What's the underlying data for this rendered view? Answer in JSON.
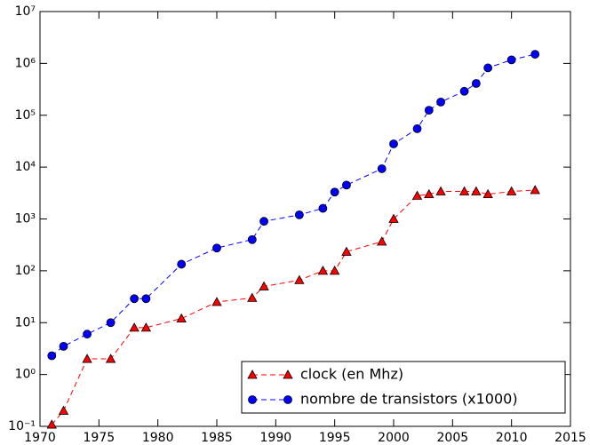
{
  "chart_data": {
    "type": "line",
    "log_y": true,
    "legend": "lower right",
    "xlim": [
      1970,
      2015
    ],
    "xticks": [
      1970,
      1975,
      1980,
      1985,
      1990,
      1995,
      2000,
      2005,
      2010,
      2015
    ],
    "ylim": [
      0.1,
      10000000
    ],
    "yticks": [
      {
        "value": 0.1,
        "label": "10⁻¹"
      },
      {
        "value": 1,
        "label": "10⁰"
      },
      {
        "value": 10,
        "label": "10¹"
      },
      {
        "value": 100,
        "label": "10²"
      },
      {
        "value": 1000,
        "label": "10³"
      },
      {
        "value": 10000,
        "label": "10⁴"
      },
      {
        "value": 100000,
        "label": "10⁵"
      },
      {
        "value": 1000000,
        "label": "10⁶"
      },
      {
        "value": 10000000,
        "label": "10⁷"
      }
    ],
    "series": [
      {
        "name": "clock (en Mhz)",
        "color": "#ff0000",
        "marker": "triangle",
        "x": [
          1971,
          1972,
          1974,
          1976,
          1978,
          1979,
          1982,
          1985,
          1988,
          1989,
          1992,
          1994,
          1995,
          1996,
          1999,
          2000,
          2002,
          2003,
          2004,
          2006,
          2007,
          2008,
          2010,
          2012
        ],
        "values": [
          0.108,
          0.2,
          2,
          2,
          8,
          8,
          12,
          25,
          30,
          50,
          66,
          100,
          100,
          233,
          366,
          1000,
          2800,
          3000,
          3400,
          3400,
          3400,
          3000,
          3400,
          3600
        ]
      },
      {
        "name": "nombre de transistors (x1000)",
        "color": "#0000ff",
        "marker": "circle",
        "x": [
          1971,
          1972,
          1974,
          1976,
          1978,
          1979,
          1982,
          1985,
          1988,
          1989,
          1992,
          1994,
          1995,
          1996,
          1999,
          2000,
          2002,
          2003,
          2004,
          2006,
          2007,
          2008,
          2010,
          2012
        ],
        "values": [
          2.3,
          3.5,
          6,
          10,
          29,
          29,
          134,
          275,
          400,
          900,
          1200,
          1600,
          3300,
          4500,
          9300,
          28000,
          55000,
          125000,
          180000,
          290000,
          410000,
          820000,
          1170000,
          1500000
        ]
      }
    ]
  }
}
